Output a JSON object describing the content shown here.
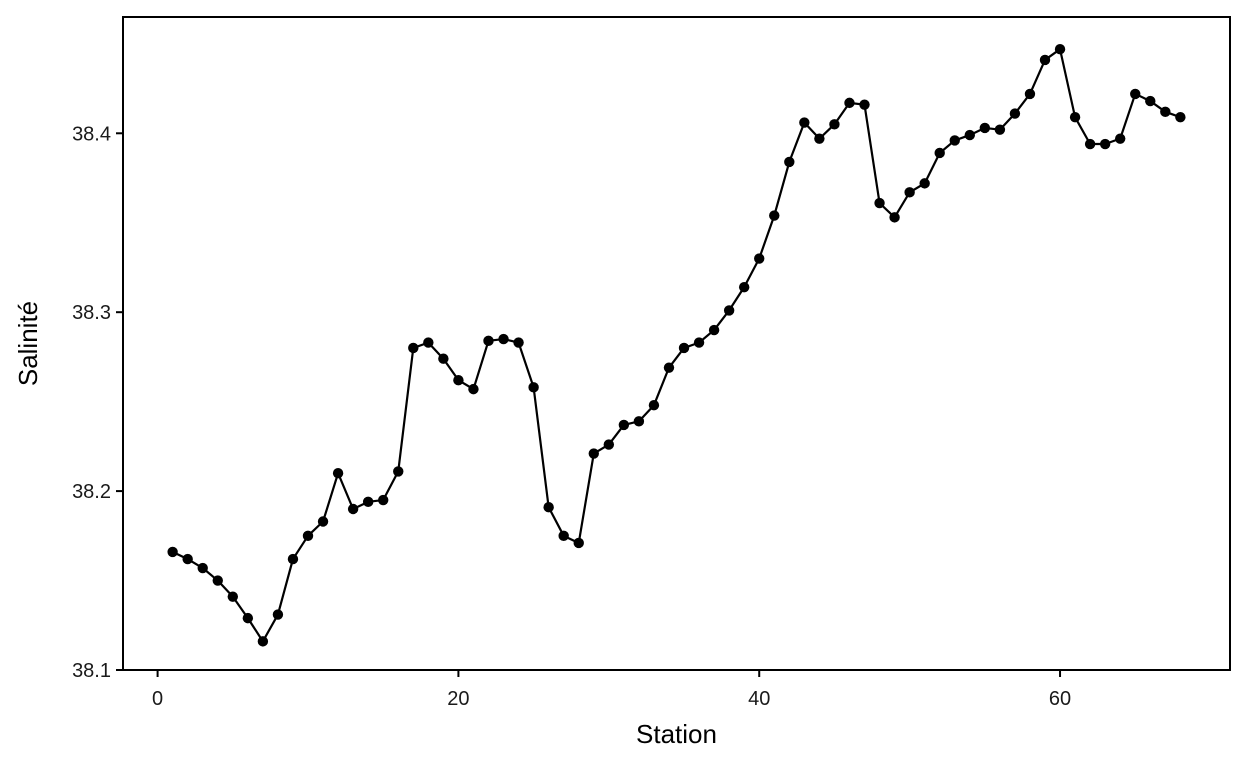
{
  "chart_data": {
    "type": "line",
    "title": "",
    "xlabel": "Station",
    "ylabel": "Salinité",
    "xlim": [
      -2.3,
      71.3
    ],
    "ylim": [
      38.1,
      38.465
    ],
    "x_ticks": [
      0,
      20,
      40,
      60
    ],
    "y_ticks": [
      38.1,
      38.2,
      38.3,
      38.4
    ],
    "grid": false,
    "series": [
      {
        "x": [
          1,
          2,
          3,
          4,
          5,
          6,
          7,
          8,
          9,
          10,
          11,
          12,
          13,
          14,
          15,
          16,
          17,
          18,
          19,
          20,
          21,
          22,
          23,
          24,
          25,
          26,
          27,
          28,
          29,
          30,
          31,
          32,
          33,
          34,
          35,
          36,
          37,
          38,
          39,
          40,
          41,
          42,
          43,
          44,
          45,
          46,
          47,
          48,
          49,
          50,
          51,
          52,
          53,
          54,
          55,
          56,
          57,
          58,
          59,
          60,
          61,
          62,
          63,
          64,
          65,
          66,
          67,
          68
        ],
        "y": [
          38.166,
          38.162,
          38.157,
          38.15,
          38.141,
          38.129,
          38.116,
          38.131,
          38.162,
          38.175,
          38.183,
          38.21,
          38.19,
          38.194,
          38.195,
          38.211,
          38.28,
          38.283,
          38.274,
          38.262,
          38.257,
          38.284,
          38.285,
          38.283,
          38.258,
          38.191,
          38.175,
          38.171,
          38.221,
          38.226,
          38.237,
          38.239,
          38.248,
          38.269,
          38.28,
          38.283,
          38.29,
          38.301,
          38.314,
          38.33,
          38.354,
          38.384,
          38.406,
          38.397,
          38.405,
          38.417,
          38.416,
          38.361,
          38.353,
          38.367,
          38.372,
          38.389,
          38.396,
          38.399,
          38.403,
          38.402,
          38.411,
          38.422,
          38.441,
          38.447,
          38.409,
          38.394,
          38.394,
          38.397,
          38.422,
          38.418,
          38.412,
          38.409
        ]
      }
    ],
    "colors": {
      "line": "#000000",
      "points": "#000000",
      "axis": "#000000",
      "background": "#ffffff"
    }
  }
}
